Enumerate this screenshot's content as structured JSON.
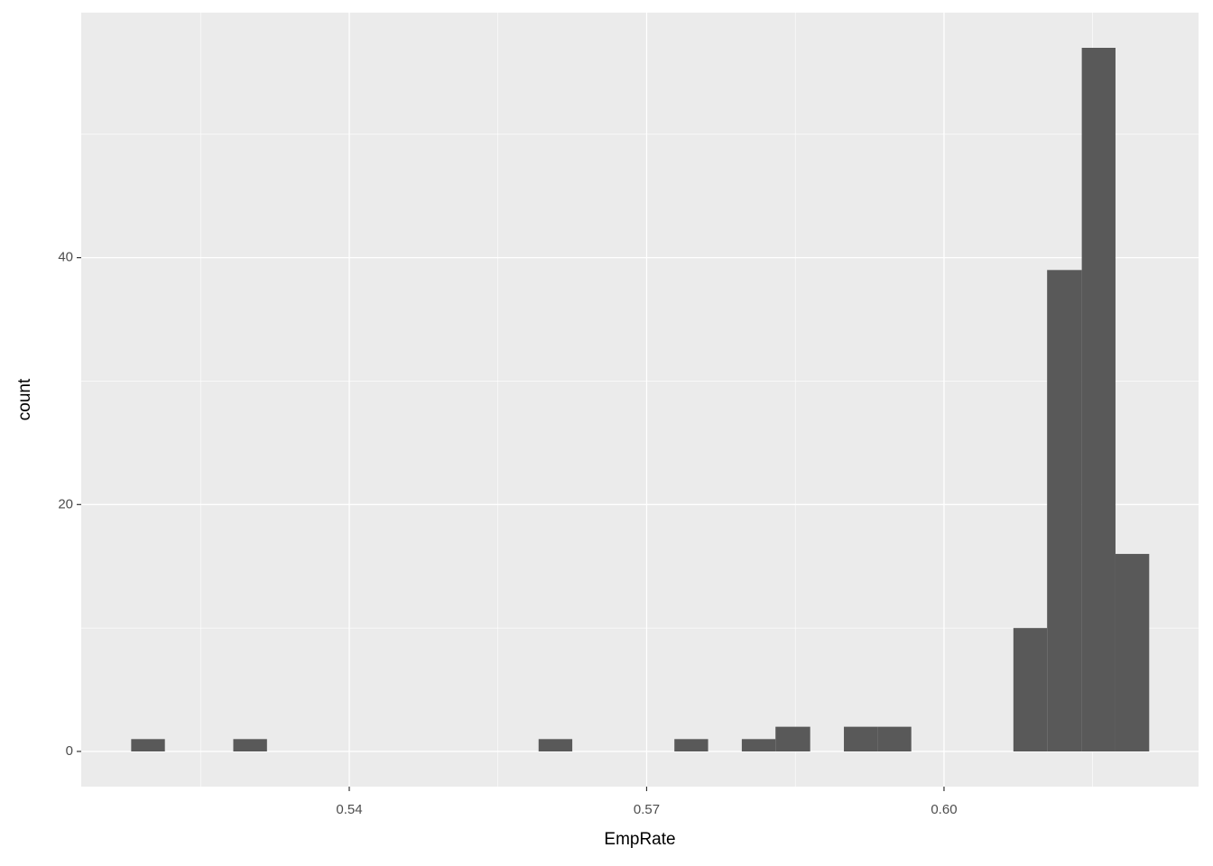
{
  "chart_data": {
    "type": "histogram",
    "x_label": "EmpRate",
    "y_label": "count",
    "bins": [
      0.518,
      0.5214,
      0.5248,
      0.5283,
      0.5317,
      0.5351,
      0.5385,
      0.542,
      0.5454,
      0.5488,
      0.5522,
      0.5557,
      0.5591,
      0.5625,
      0.5659,
      0.5693,
      0.5728,
      0.5762,
      0.5796,
      0.583,
      0.5865,
      0.5899,
      0.5933,
      0.5967,
      0.6002,
      0.6036,
      0.607,
      0.6104,
      0.6139,
      0.6173,
      0.6207
    ],
    "counts": [
      1,
      0,
      0,
      1,
      0,
      0,
      0,
      0,
      0,
      0,
      0,
      0,
      1,
      0,
      0,
      0,
      1,
      0,
      1,
      2,
      0,
      2,
      2,
      0,
      0,
      0,
      10,
      39,
      57,
      16
    ],
    "color": "#595959",
    "xlim": [
      0.51296,
      0.62568
    ],
    "ylim": [
      -2.85,
      59.85
    ],
    "xticks": [
      0.54,
      0.57,
      {
        "value": 0.6,
        "label": "0.60"
      }
    ],
    "yticks": [
      0,
      20,
      40
    ],
    "x_minor_grid": [
      0.525,
      0.555,
      0.585,
      0.615
    ],
    "y_minor_grid": [
      10,
      30,
      50
    ],
    "grid": true
  }
}
